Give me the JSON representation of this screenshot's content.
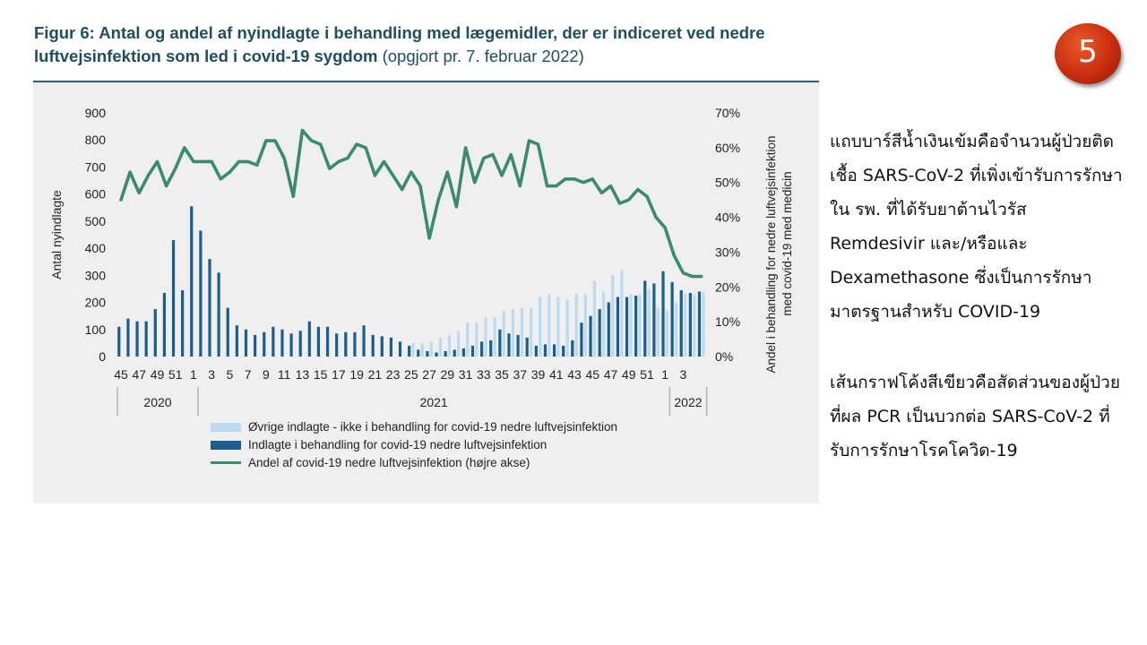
{
  "slide_number": "5",
  "title_bold": "Figur 6: Antal og andel af nyindlagte i behandling med lægemidler, der er indiceret ved nedre luftvejsinfektion som led i covid-19 sygdom",
  "title_normal": " (opgjort pr. 7. februar 2022)",
  "notes": [
    "แถบบาร์สีน้ำเงินเข้มคือจำนวนผู้ป่วยติดเชื้อ SARS-CoV-2 ที่เพิ่งเข้ารับการรักษาใน รพ. ที่ได้รับยาต้านไวรัส Remdesivir และ/หรือและ Dexamethasone ซึ่งเป็นการรักษามาตรฐานสำหรับ COVID-19",
    "เส้นกราฟโค้งสีเขียวคือสัดส่วนของผู้ป่วยที่ผล PCR เป็นบวกต่อ SARS-CoV-2 ที่รับการรักษาโรคโควิด-19"
  ],
  "colors": {
    "light_bar": "#bcdaf0",
    "dark_bar": "#1b5e8c",
    "line": "#3a8b6c",
    "title": "#1f4e5f",
    "panel": "#efefef",
    "badge": "#c92d0e"
  },
  "chart_data": {
    "type": "bar+line",
    "ylabel_left": "Antal nyindlagte",
    "ylabel_right_line1": "Andel i behandling for nedre luftvejsinfektion",
    "ylabel_right_line2": "med covid-19 med medicin",
    "ylim_left": [
      0,
      900
    ],
    "ylim_right": [
      0,
      70
    ],
    "yticks_left": [
      "0",
      "100",
      "200",
      "300",
      "400",
      "500",
      "600",
      "700",
      "800",
      "900"
    ],
    "yticks_right": [
      "0%",
      "10%",
      "20%",
      "30%",
      "40%",
      "50%",
      "60%",
      "70%"
    ],
    "x_week_labels": [
      "45",
      "47",
      "49",
      "51",
      "1",
      "3",
      "5",
      "7",
      "9",
      "11",
      "13",
      "15",
      "17",
      "19",
      "21",
      "23",
      "25",
      "27",
      "29",
      "31",
      "33",
      "35",
      "37",
      "39",
      "41",
      "43",
      "45",
      "47",
      "49",
      "51",
      "1",
      "3"
    ],
    "year_labels": [
      "2020",
      "2021",
      "2022"
    ],
    "weeks": [
      "45",
      "46",
      "47",
      "48",
      "49",
      "50",
      "51",
      "52",
      "53",
      "1",
      "2",
      "3",
      "4",
      "5",
      "6",
      "7",
      "8",
      "9",
      "10",
      "11",
      "12",
      "13",
      "14",
      "15",
      "16",
      "17",
      "18",
      "19",
      "20",
      "21",
      "22",
      "23",
      "24",
      "25",
      "26",
      "27",
      "28",
      "29",
      "30",
      "31",
      "32",
      "33",
      "34",
      "35",
      "36",
      "37",
      "38",
      "39",
      "40",
      "41",
      "42",
      "43",
      "44",
      "45",
      "46",
      "47",
      "48",
      "49",
      "50",
      "51",
      "52",
      "1",
      "2",
      "3",
      "4"
    ],
    "series": [
      {
        "name": "Øvrige indlagte - ikke i behandling for covid-19 nedre luftvejsinfektion",
        "type": "bar",
        "axis": "left",
        "values": [
          0,
          0,
          0,
          0,
          0,
          0,
          0,
          0,
          0,
          0,
          0,
          0,
          0,
          0,
          0,
          0,
          0,
          0,
          0,
          0,
          0,
          0,
          0,
          0,
          0,
          0,
          0,
          0,
          0,
          0,
          0,
          0,
          50,
          50,
          55,
          70,
          80,
          95,
          125,
          125,
          145,
          145,
          170,
          175,
          180,
          180,
          220,
          230,
          220,
          210,
          230,
          230,
          280,
          240,
          300,
          320,
          230,
          230,
          250,
          180,
          170,
          200,
          230,
          230,
          240
        ]
      },
      {
        "name": "Indlagte i behandling for covid-19 nedre luftvejsinfektion",
        "type": "bar",
        "axis": "left",
        "values": [
          110,
          140,
          130,
          130,
          175,
          235,
          430,
          245,
          555,
          465,
          360,
          310,
          180,
          115,
          100,
          80,
          90,
          110,
          100,
          85,
          95,
          130,
          110,
          110,
          85,
          90,
          90,
          115,
          80,
          75,
          70,
          55,
          40,
          25,
          20,
          15,
          20,
          25,
          30,
          40,
          55,
          60,
          100,
          85,
          80,
          70,
          40,
          45,
          45,
          40,
          60,
          125,
          150,
          175,
          200,
          220,
          220,
          225,
          280,
          270,
          315,
          275,
          245,
          235,
          240
        ]
      },
      {
        "name": "Andel af covid-19 nedre luftvejsinfektion (højre akse)",
        "type": "line",
        "axis": "right",
        "values": [
          45,
          53,
          47,
          52,
          56,
          49,
          54,
          60,
          56,
          56,
          56,
          51,
          53,
          56,
          56,
          55,
          62,
          62,
          57,
          46,
          65,
          62,
          61,
          54,
          56,
          57,
          61,
          60,
          52,
          56,
          52,
          48,
          53,
          49,
          34,
          45,
          53,
          43,
          60,
          50,
          57,
          58,
          52,
          58,
          49,
          62,
          61,
          49,
          49,
          51,
          51,
          50,
          51,
          47,
          49,
          44,
          45,
          48,
          46,
          40,
          37,
          29,
          24,
          23,
          23
        ]
      }
    ],
    "legend_position": "bottom-left",
    "grid": false
  }
}
